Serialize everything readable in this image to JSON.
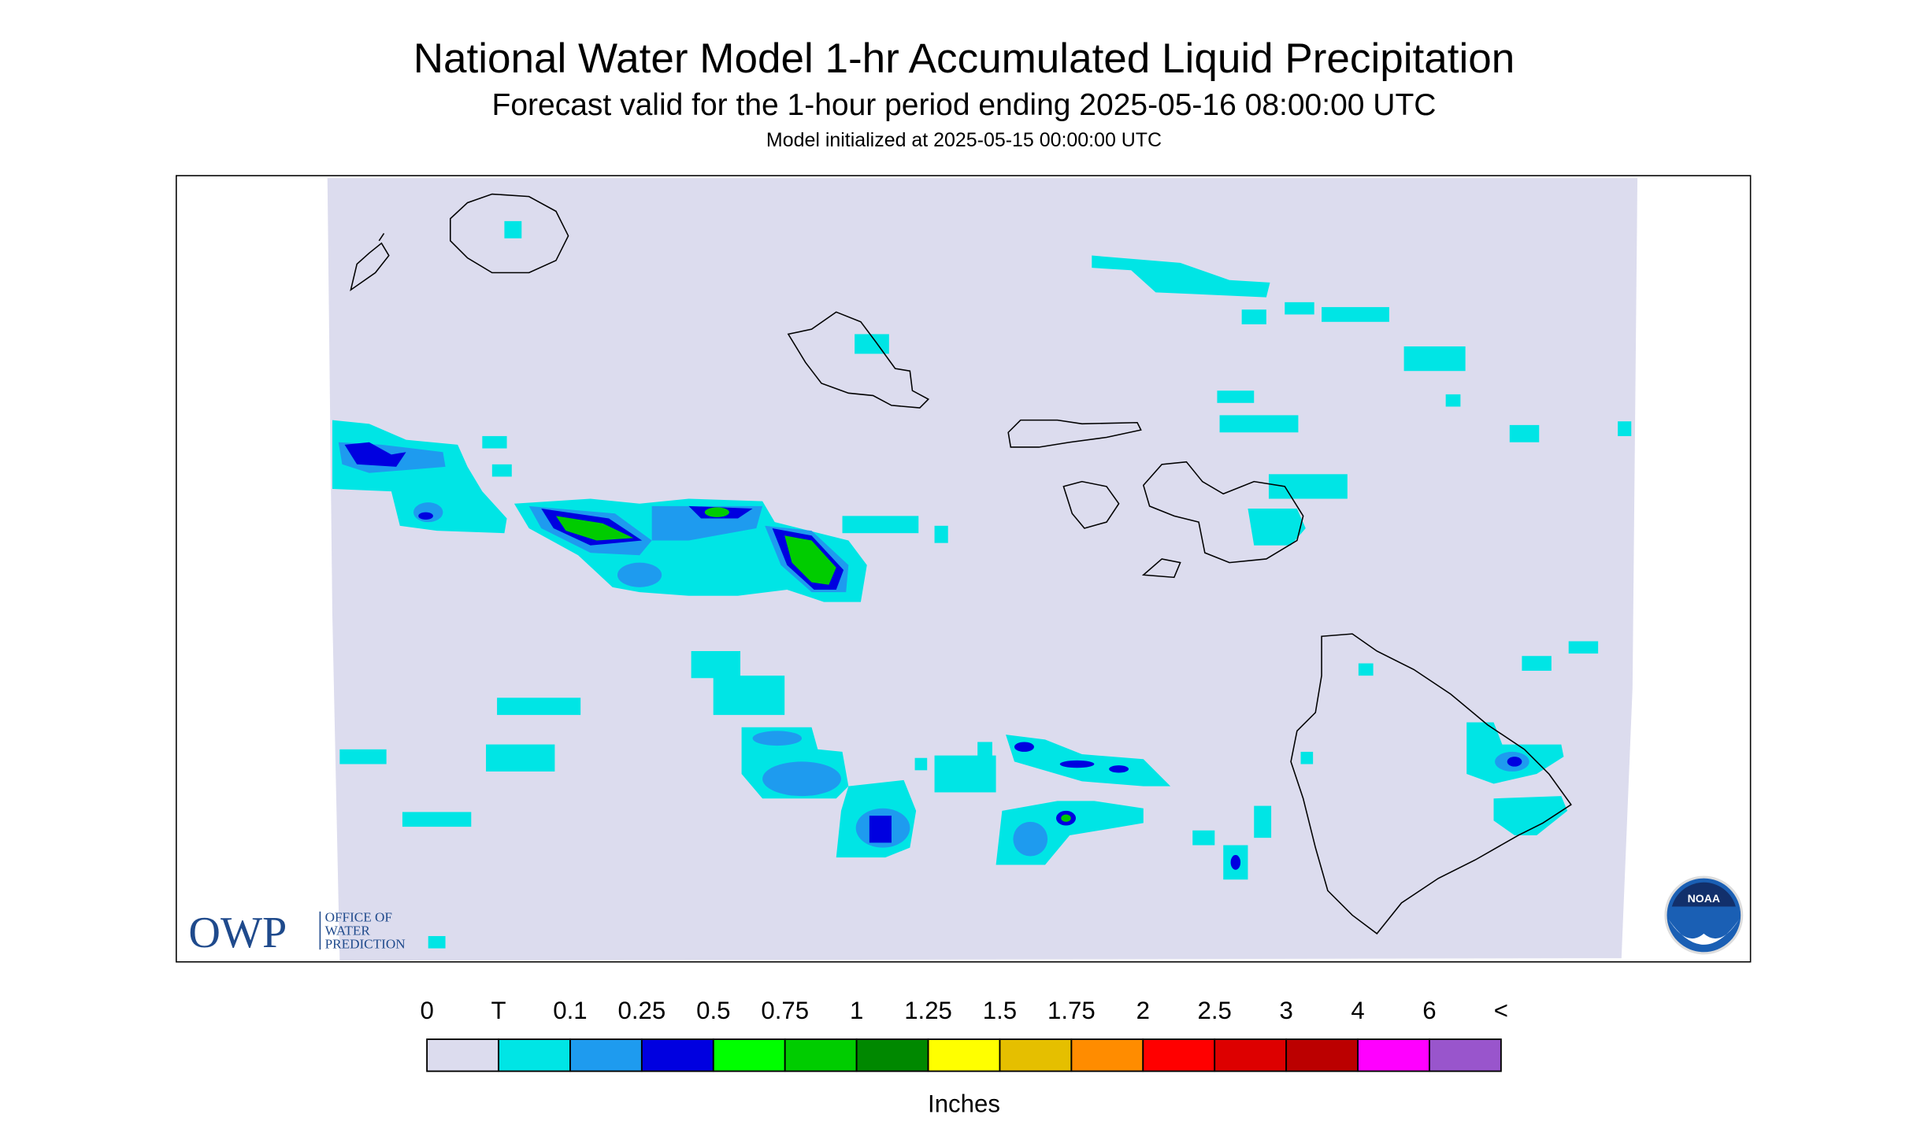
{
  "header": {
    "title": "National Water Model 1-hr Accumulated Liquid Precipitation",
    "subtitle": "Forecast valid for the 1-hour period ending 2025-05-16 08:00:00 UTC",
    "note": "Model initialized at 2025-05-15 00:00:00 UTC"
  },
  "logos": {
    "owp": "OWP",
    "owp_name": [
      "OFFICE OF",
      "WATER",
      "PREDICTION"
    ],
    "noaa": "NOAA"
  },
  "legend": {
    "labels": [
      "0",
      "T",
      "0.1",
      "0.25",
      "0.5",
      "0.75",
      "1",
      "1.25",
      "1.5",
      "1.75",
      "2",
      "2.5",
      "3",
      "4",
      "6",
      "<"
    ],
    "colors": [
      "#dcdcee",
      "#00e5e5",
      "#1e9bef",
      "#0000e0",
      "#00ff00",
      "#00cc00",
      "#008800",
      "#ffff00",
      "#e5bf00",
      "#ff8c00",
      "#ff0000",
      "#dd0000",
      "#bb0000",
      "#ff00ff",
      "#9955cc"
    ],
    "unit": "Inches"
  }
}
